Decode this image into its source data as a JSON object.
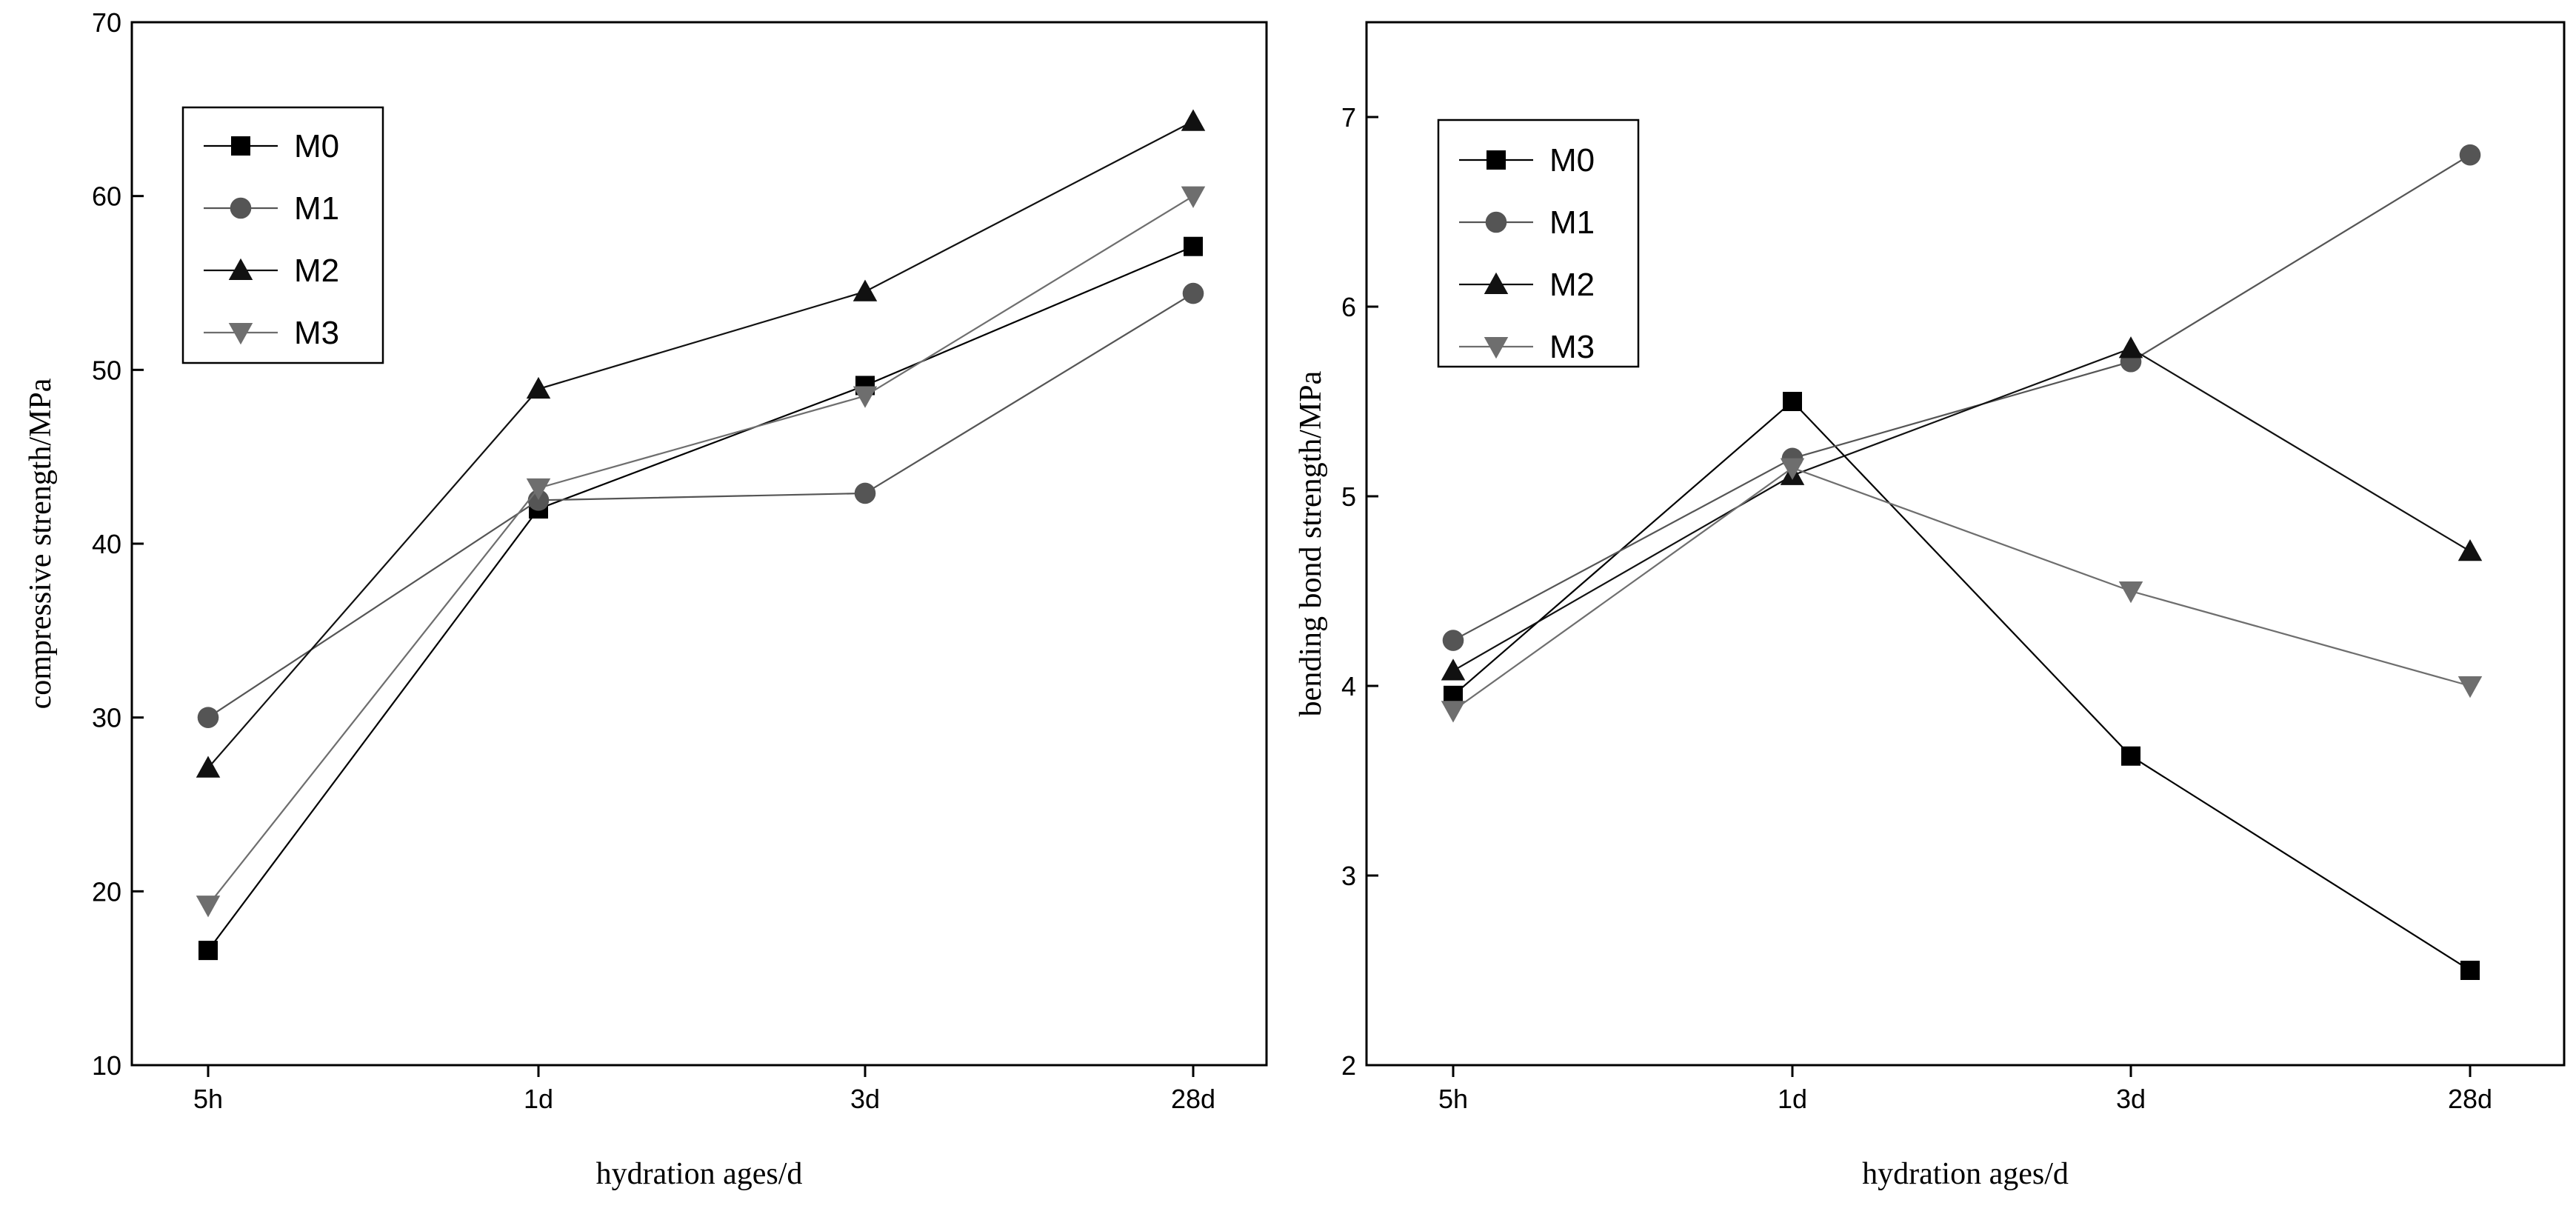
{
  "chart_data": [
    {
      "type": "line",
      "categories": [
        "5h",
        "1d",
        "3d",
        "28d"
      ],
      "xlabel": "hydration ages/d",
      "ylabel": "compressive strength/MPa",
      "ylim": [
        10,
        70
      ],
      "yticks": [
        10,
        20,
        30,
        40,
        50,
        60,
        70
      ],
      "legend_position": "top-left",
      "series": [
        {
          "name": "M0",
          "marker": "square",
          "color": "#000000",
          "values": [
            16.6,
            42.0,
            49.1,
            57.1
          ]
        },
        {
          "name": "M1",
          "marker": "circle",
          "color": "#555555",
          "values": [
            30.0,
            42.5,
            42.9,
            54.4
          ]
        },
        {
          "name": "M2",
          "marker": "triangle-up",
          "color": "#111111",
          "values": [
            27.1,
            48.9,
            54.5,
            64.3
          ]
        },
        {
          "name": "M3",
          "marker": "triangle-down",
          "color": "#6e6e6e",
          "values": [
            19.2,
            43.2,
            48.5,
            60.0
          ]
        }
      ]
    },
    {
      "type": "line",
      "categories": [
        "5h",
        "1d",
        "3d",
        "28d"
      ],
      "xlabel": "hydration ages/d",
      "ylabel": "bending bond strength/MPa",
      "ylim": [
        2,
        7.5
      ],
      "yticks": [
        2,
        3,
        4,
        5,
        6,
        7
      ],
      "legend_position": "top-left",
      "series": [
        {
          "name": "M0",
          "marker": "square",
          "color": "#000000",
          "values": [
            3.95,
            5.5,
            3.63,
            2.5
          ]
        },
        {
          "name": "M1",
          "marker": "circle",
          "color": "#555555",
          "values": [
            4.24,
            5.2,
            5.71,
            6.8
          ]
        },
        {
          "name": "M2",
          "marker": "triangle-up",
          "color": "#111111",
          "values": [
            4.08,
            5.11,
            5.78,
            4.71
          ]
        },
        {
          "name": "M3",
          "marker": "triangle-down",
          "color": "#6e6e6e",
          "values": [
            3.87,
            5.15,
            4.5,
            4.0
          ]
        }
      ]
    }
  ]
}
